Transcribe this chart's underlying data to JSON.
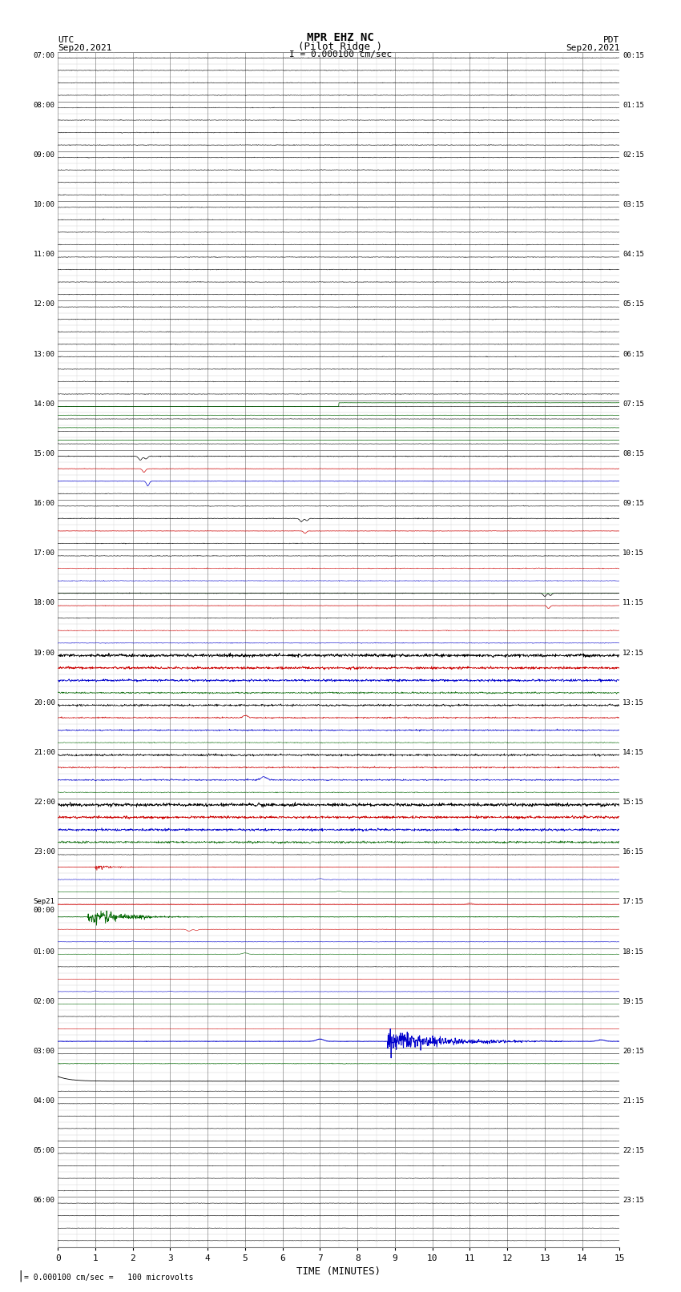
{
  "title_line1": "MPR EHZ NC",
  "title_line2": "(Pilot Ridge )",
  "scale_label": "I = 0.000100 cm/sec",
  "left_header_line1": "UTC",
  "left_header_line2": "Sep20,2021",
  "right_header_line1": "PDT",
  "right_header_line2": "Sep20,2021",
  "bottom_label": "TIME (MINUTES)",
  "bottom_note": "= 0.000100 cm/sec =   100 microvolts",
  "num_rows": 96,
  "x_min": 0,
  "x_max": 15,
  "x_ticks": [
    0,
    1,
    2,
    3,
    4,
    5,
    6,
    7,
    8,
    9,
    10,
    11,
    12,
    13,
    14,
    15
  ],
  "bg_color": "#ffffff",
  "major_grid_color": "#888888",
  "minor_grid_color": "#cccccc",
  "trace_black": "#000000",
  "trace_red": "#cc0000",
  "trace_blue": "#0000cc",
  "trace_green": "#006600",
  "seed": 42,
  "utc_labels": [
    [
      0,
      "07:00"
    ],
    [
      4,
      "08:00"
    ],
    [
      8,
      "09:00"
    ],
    [
      12,
      "10:00"
    ],
    [
      16,
      "11:00"
    ],
    [
      20,
      "12:00"
    ],
    [
      24,
      "13:00"
    ],
    [
      28,
      "14:00"
    ],
    [
      32,
      "15:00"
    ],
    [
      36,
      "16:00"
    ],
    [
      40,
      "17:00"
    ],
    [
      44,
      "18:00"
    ],
    [
      48,
      "19:00"
    ],
    [
      52,
      "20:00"
    ],
    [
      56,
      "21:00"
    ],
    [
      60,
      "22:00"
    ],
    [
      64,
      "23:00"
    ],
    [
      68,
      "Sep21\n00:00"
    ],
    [
      72,
      "01:00"
    ],
    [
      76,
      "02:00"
    ],
    [
      80,
      "03:00"
    ],
    [
      84,
      "04:00"
    ],
    [
      88,
      "05:00"
    ],
    [
      92,
      "06:00"
    ]
  ],
  "pdt_labels": [
    [
      0,
      "00:15"
    ],
    [
      4,
      "01:15"
    ],
    [
      8,
      "02:15"
    ],
    [
      12,
      "03:15"
    ],
    [
      16,
      "04:15"
    ],
    [
      20,
      "05:15"
    ],
    [
      24,
      "06:15"
    ],
    [
      28,
      "07:15"
    ],
    [
      32,
      "08:15"
    ],
    [
      36,
      "09:15"
    ],
    [
      40,
      "10:15"
    ],
    [
      44,
      "11:15"
    ],
    [
      48,
      "12:15"
    ],
    [
      52,
      "13:15"
    ],
    [
      56,
      "14:15"
    ],
    [
      60,
      "15:15"
    ],
    [
      64,
      "16:15"
    ],
    [
      68,
      "17:15"
    ],
    [
      72,
      "18:15"
    ],
    [
      76,
      "19:15"
    ],
    [
      80,
      "20:15"
    ],
    [
      84,
      "21:15"
    ],
    [
      88,
      "22:15"
    ],
    [
      92,
      "23:15"
    ]
  ]
}
